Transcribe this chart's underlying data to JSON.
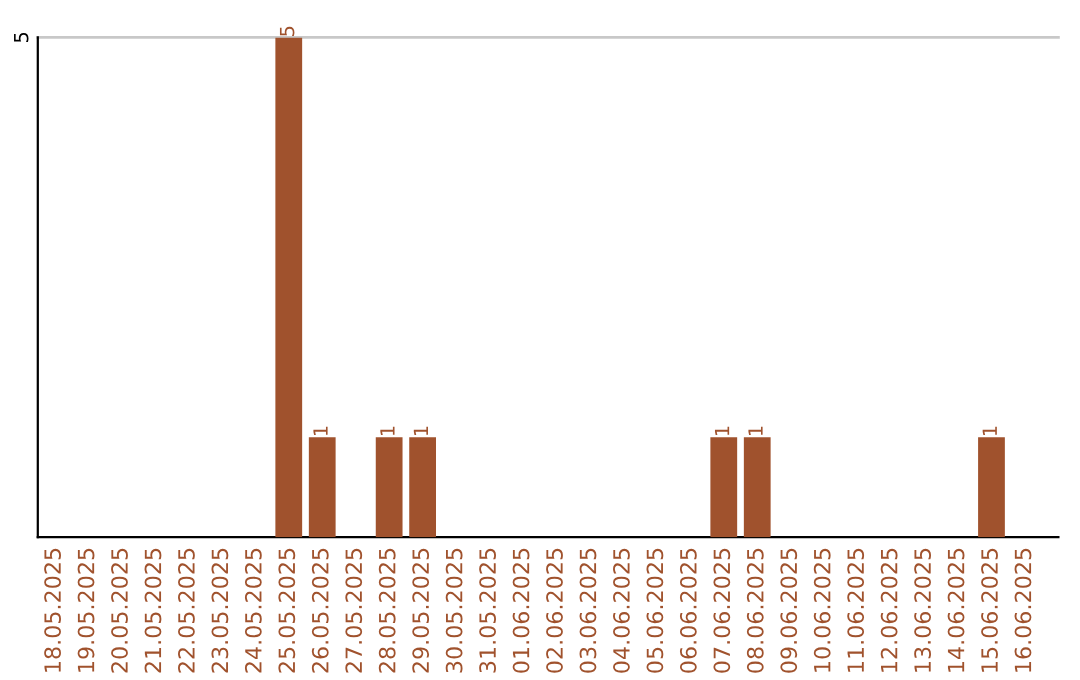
{
  "chart_data": {
    "type": "bar",
    "categories": [
      "18.05.2025",
      "19.05.2025",
      "20.05.2025",
      "21.05.2025",
      "22.05.2025",
      "23.05.2025",
      "24.05.2025",
      "25.05.2025",
      "26.05.2025",
      "27.05.2025",
      "28.05.2025",
      "29.05.2025",
      "30.05.2025",
      "31.05.2025",
      "01.06.2025",
      "02.06.2025",
      "03.06.2025",
      "04.06.2025",
      "05.06.2025",
      "06.06.2025",
      "07.06.2025",
      "08.06.2025",
      "09.06.2025",
      "10.06.2025",
      "11.06.2025",
      "12.06.2025",
      "13.06.2025",
      "14.06.2025",
      "15.06.2025",
      "16.06.2025"
    ],
    "values": [
      0,
      0,
      0,
      0,
      0,
      0,
      0,
      5,
      1,
      0,
      1,
      1,
      0,
      0,
      0,
      0,
      0,
      0,
      0,
      0,
      1,
      1,
      0,
      0,
      0,
      0,
      0,
      0,
      1,
      0
    ],
    "value_labels": [
      null,
      null,
      null,
      null,
      null,
      null,
      null,
      "5",
      "1",
      null,
      "1",
      "1",
      null,
      null,
      null,
      null,
      null,
      null,
      null,
      null,
      "1",
      "1",
      null,
      null,
      null,
      null,
      null,
      null,
      "1",
      null
    ],
    "color": "#a0522d",
    "ylim": [
      0,
      5
    ],
    "yticks": [
      5
    ],
    "ref_lines": [
      {
        "axis": "y",
        "value": 5,
        "color": "#c8c8c8"
      }
    ],
    "legend": false
  }
}
